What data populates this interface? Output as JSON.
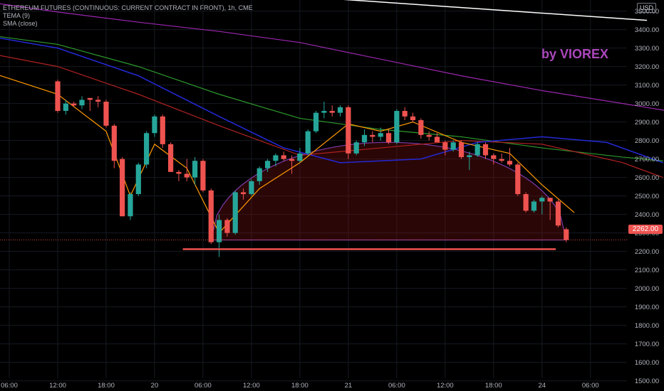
{
  "legend": {
    "symbol": "ETHEREUM FUTURES (CONTINUOUS: CURRENT CONTRACT IN FRONT), 1h, CME",
    "indicator1": "TEMA (9)",
    "indicator2": "SMA (close)"
  },
  "watermark": "by VIOREX",
  "currency": "USD",
  "last_price": "2262.00",
  "colors": {
    "up": "#26a69a",
    "down": "#ef5350",
    "background": "#000000",
    "tema": "#ff9800",
    "sma_blue": "#2429d6",
    "sma_green": "#2e9a2e",
    "sma_red": "#b22222",
    "sma_purple": "#9c27b0",
    "cup_line": "#7e3aa8",
    "trend_line": "#ffffff",
    "support_line": "#ef5350"
  },
  "chart_data": {
    "type": "candlestick",
    "y_ticks": [
      1500,
      1600,
      1700,
      1800,
      1900,
      2000,
      2100,
      2200,
      2300,
      2400,
      2500,
      2600,
      2700,
      2800,
      2900,
      3000,
      3100,
      3200,
      3300,
      3400,
      3500
    ],
    "ylim": [
      1445,
      3560
    ],
    "x_ticks": [
      {
        "label": "06:00",
        "i": -6
      },
      {
        "label": "12:00",
        "i": 0
      },
      {
        "label": "18:00",
        "i": 6
      },
      {
        "label": "20",
        "i": 12
      },
      {
        "label": "06:00",
        "i": 18
      },
      {
        "label": "12:00",
        "i": 24
      },
      {
        "label": "18:00",
        "i": 30
      },
      {
        "label": "21",
        "i": 36
      },
      {
        "label": "06:00",
        "i": 42
      },
      {
        "label": "12:00",
        "i": 48
      },
      {
        "label": "18:00",
        "i": 54
      },
      {
        "label": "24",
        "i": 60
      },
      {
        "label": "06:00",
        "i": 66
      }
    ],
    "candles": [
      {
        "o": 3120,
        "h": 3130,
        "l": 2950,
        "c": 2960
      },
      {
        "o": 2960,
        "h": 3020,
        "l": 2940,
        "c": 3000
      },
      {
        "o": 3000,
        "h": 3010,
        "l": 2980,
        "c": 2990
      },
      {
        "o": 2990,
        "h": 3040,
        "l": 2970,
        "c": 3020
      },
      {
        "o": 3030,
        "h": 3030,
        "l": 2960,
        "c": 3020
      },
      {
        "o": 3020,
        "h": 3040,
        "l": 2980,
        "c": 3010
      },
      {
        "o": 3010,
        "h": 3020,
        "l": 2870,
        "c": 2880
      },
      {
        "o": 2880,
        "h": 2890,
        "l": 2650,
        "c": 2690
      },
      {
        "o": 2700,
        "h": 2710,
        "l": 2390,
        "c": 2390
      },
      {
        "o": 2390,
        "h": 2520,
        "l": 2370,
        "c": 2510
      },
      {
        "o": 2510,
        "h": 2680,
        "l": 2500,
        "c": 2670
      },
      {
        "o": 2670,
        "h": 2850,
        "l": 2650,
        "c": 2840
      },
      {
        "o": 2840,
        "h": 2940,
        "l": 2820,
        "c": 2930
      },
      {
        "o": 2930,
        "h": 2940,
        "l": 2760,
        "c": 2780
      },
      {
        "o": 2780,
        "h": 2790,
        "l": 2630,
        "c": 2630
      },
      {
        "o": 2630,
        "h": 2640,
        "l": 2580,
        "c": 2620
      },
      {
        "o": 2620,
        "h": 2700,
        "l": 2580,
        "c": 2600
      },
      {
        "o": 2600,
        "h": 2710,
        "l": 2560,
        "c": 2690
      },
      {
        "o": 2690,
        "h": 2700,
        "l": 2520,
        "c": 2530
      },
      {
        "o": 2530,
        "h": 2540,
        "l": 2240,
        "c": 2250
      },
      {
        "o": 2250,
        "h": 2400,
        "l": 2170,
        "c": 2370
      },
      {
        "o": 2370,
        "h": 2380,
        "l": 2280,
        "c": 2300
      },
      {
        "o": 2300,
        "h": 2530,
        "l": 2290,
        "c": 2520
      },
      {
        "o": 2520,
        "h": 2540,
        "l": 2480,
        "c": 2510
      },
      {
        "o": 2510,
        "h": 2590,
        "l": 2500,
        "c": 2580
      },
      {
        "o": 2580,
        "h": 2660,
        "l": 2560,
        "c": 2650
      },
      {
        "o": 2650,
        "h": 2700,
        "l": 2630,
        "c": 2690
      },
      {
        "o": 2690,
        "h": 2730,
        "l": 2660,
        "c": 2720
      },
      {
        "o": 2720,
        "h": 2740,
        "l": 2690,
        "c": 2700
      },
      {
        "o": 2700,
        "h": 2720,
        "l": 2620,
        "c": 2690
      },
      {
        "o": 2690,
        "h": 2760,
        "l": 2680,
        "c": 2730
      },
      {
        "o": 2730,
        "h": 2860,
        "l": 2720,
        "c": 2850
      },
      {
        "o": 2850,
        "h": 2960,
        "l": 2840,
        "c": 2950
      },
      {
        "o": 2950,
        "h": 3010,
        "l": 2920,
        "c": 2960
      },
      {
        "o": 2960,
        "h": 2990,
        "l": 2930,
        "c": 2950
      },
      {
        "o": 2950,
        "h": 2990,
        "l": 2930,
        "c": 2980
      },
      {
        "o": 2980,
        "h": 2990,
        "l": 2700,
        "c": 2730
      },
      {
        "o": 2730,
        "h": 2800,
        "l": 2720,
        "c": 2790
      },
      {
        "o": 2790,
        "h": 2860,
        "l": 2770,
        "c": 2830
      },
      {
        "o": 2830,
        "h": 2850,
        "l": 2790,
        "c": 2820
      },
      {
        "o": 2820,
        "h": 2870,
        "l": 2800,
        "c": 2840
      },
      {
        "o": 2840,
        "h": 2860,
        "l": 2780,
        "c": 2790
      },
      {
        "o": 2790,
        "h": 2970,
        "l": 2780,
        "c": 2960
      },
      {
        "o": 2960,
        "h": 2980,
        "l": 2910,
        "c": 2930
      },
      {
        "o": 2930,
        "h": 2950,
        "l": 2900,
        "c": 2910
      },
      {
        "o": 2910,
        "h": 2920,
        "l": 2810,
        "c": 2830
      },
      {
        "o": 2830,
        "h": 2850,
        "l": 2800,
        "c": 2820
      },
      {
        "o": 2820,
        "h": 2840,
        "l": 2790,
        "c": 2790
      },
      {
        "o": 2790,
        "h": 2800,
        "l": 2720,
        "c": 2750
      },
      {
        "o": 2750,
        "h": 2800,
        "l": 2740,
        "c": 2790
      },
      {
        "o": 2790,
        "h": 2800,
        "l": 2700,
        "c": 2710
      },
      {
        "o": 2710,
        "h": 2740,
        "l": 2640,
        "c": 2720
      },
      {
        "o": 2720,
        "h": 2790,
        "l": 2710,
        "c": 2780
      },
      {
        "o": 2780,
        "h": 2790,
        "l": 2700,
        "c": 2720
      },
      {
        "o": 2720,
        "h": 2730,
        "l": 2670,
        "c": 2700
      },
      {
        "o": 2700,
        "h": 2730,
        "l": 2680,
        "c": 2690
      },
      {
        "o": 2690,
        "h": 2760,
        "l": 2660,
        "c": 2670
      },
      {
        "o": 2670,
        "h": 2680,
        "l": 2500,
        "c": 2510
      },
      {
        "o": 2510,
        "h": 2520,
        "l": 2410,
        "c": 2420
      },
      {
        "o": 2420,
        "h": 2480,
        "l": 2410,
        "c": 2470
      },
      {
        "o": 2470,
        "h": 2500,
        "l": 2400,
        "c": 2490
      },
      {
        "o": 2490,
        "h": 2490,
        "l": 2370,
        "c": 2470
      },
      {
        "o": 2470,
        "h": 2480,
        "l": 2330,
        "c": 2340
      },
      {
        "o": 2320,
        "h": 2330,
        "l": 2250,
        "c": 2262
      }
    ],
    "support_level": 2212,
    "cup": {
      "start_index": 19,
      "end_index": 63,
      "base": 2262,
      "peak": 2790
    },
    "trend_line": {
      "from": {
        "i": 33,
        "v": 3570
      },
      "to": {
        "i": 73,
        "v": 3450
      }
    },
    "sma_purple": [
      [
        -12,
        3570
      ],
      [
        0,
        3495
      ],
      [
        10,
        3440
      ],
      [
        20,
        3390
      ],
      [
        30,
        3330
      ],
      [
        40,
        3240
      ],
      [
        50,
        3150
      ],
      [
        60,
        3070
      ],
      [
        70,
        3000
      ],
      [
        77,
        2950
      ]
    ],
    "sma_green": [
      [
        -12,
        3390
      ],
      [
        0,
        3320
      ],
      [
        10,
        3200
      ],
      [
        20,
        3050
      ],
      [
        30,
        2920
      ],
      [
        40,
        2860
      ],
      [
        50,
        2820
      ],
      [
        60,
        2760
      ],
      [
        70,
        2710
      ],
      [
        75,
        2690
      ]
    ],
    "sma_blue": [
      [
        -12,
        3390
      ],
      [
        0,
        3300
      ],
      [
        10,
        3150
      ],
      [
        20,
        2930
      ],
      [
        28,
        2760
      ],
      [
        35,
        2680
      ],
      [
        45,
        2700
      ],
      [
        52,
        2790
      ],
      [
        60,
        2820
      ],
      [
        68,
        2790
      ],
      [
        75,
        2680
      ]
    ],
    "sma_red": [
      [
        -12,
        3300
      ],
      [
        0,
        3200
      ],
      [
        10,
        3050
      ],
      [
        20,
        2880
      ],
      [
        30,
        2720
      ],
      [
        40,
        2760
      ],
      [
        50,
        2800
      ],
      [
        60,
        2780
      ],
      [
        70,
        2680
      ],
      [
        75,
        2600
      ]
    ],
    "tema": [
      [
        -12,
        3220
      ],
      [
        0,
        3050
      ],
      [
        6,
        2850
      ],
      [
        9,
        2500
      ],
      [
        12,
        2780
      ],
      [
        16,
        2650
      ],
      [
        20,
        2300
      ],
      [
        25,
        2540
      ],
      [
        30,
        2680
      ],
      [
        36,
        2890
      ],
      [
        40,
        2850
      ],
      [
        44,
        2900
      ],
      [
        50,
        2790
      ],
      [
        56,
        2730
      ],
      [
        60,
        2560
      ],
      [
        64,
        2410
      ]
    ]
  }
}
